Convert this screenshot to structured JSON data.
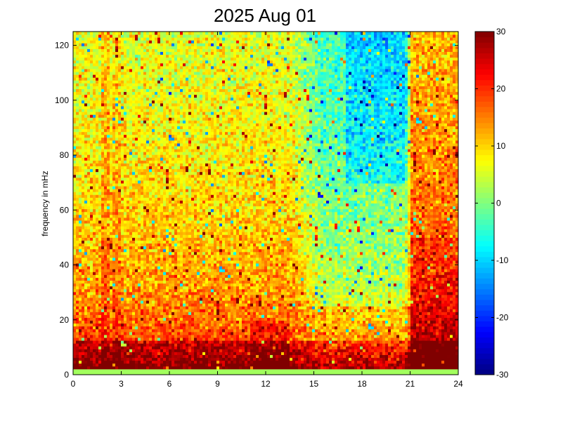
{
  "chart_data": {
    "type": "heatmap",
    "title": "2025 Aug 01",
    "xlabel": "",
    "ylabel": "frequency in mHz",
    "xlim": [
      0,
      24
    ],
    "ylim": [
      0,
      125
    ],
    "x_ticks": [
      0,
      3,
      6,
      9,
      12,
      15,
      18,
      21,
      24
    ],
    "y_ticks": [
      0,
      20,
      40,
      60,
      80,
      100,
      120
    ],
    "colorbar": {
      "colormap": "jet",
      "min": -30,
      "max": 30,
      "ticks": [
        -30,
        -20,
        -10,
        0,
        10,
        20,
        30
      ]
    },
    "grid": false
  }
}
